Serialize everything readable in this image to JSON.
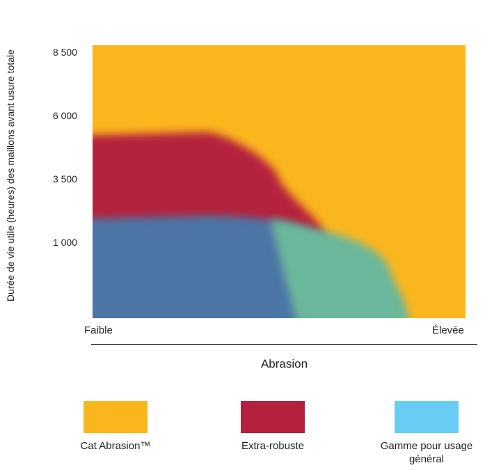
{
  "chart_data": {
    "type": "area",
    "title": "",
    "ylabel": "Durée de vie utile (heures) des maillons avant usure totale",
    "xlabel": "Abrasion",
    "x_range_labels": {
      "low": "Faible",
      "high": "Élevée"
    },
    "yticks": [
      "8 500",
      "6 000",
      "3 500",
      "1 000"
    ],
    "ytick_values": [
      8500,
      6000,
      3500,
      1000
    ],
    "series": [
      {
        "name": "Cat Abrasion™",
        "color": "#fbb61d",
        "x": [
          0,
          0.55,
          0.75,
          1
        ],
        "y": [
          8500,
          8500,
          8500,
          8500
        ]
      },
      {
        "name": "Extra-robuste",
        "color": "#b5203c",
        "x": [
          0,
          0.3,
          0.5,
          0.62
        ],
        "y": [
          5700,
          5800,
          4300,
          2600
        ]
      },
      {
        "name": "Gamme pour usage général",
        "color": "#68cdf4",
        "x": [
          0,
          0.3,
          0.55,
          0.82,
          0.85
        ],
        "y": [
          3100,
          3200,
          2800,
          900,
          0
        ]
      }
    ],
    "legend_position": "bottom",
    "grid": false
  },
  "legend": [
    {
      "label": "Cat Abrasion™",
      "color": "#fbb61d"
    },
    {
      "label": "Extra-robuste",
      "color": "#b5203c"
    },
    {
      "label": "Gamme pour usage général",
      "color": "#68cdf4"
    }
  ]
}
